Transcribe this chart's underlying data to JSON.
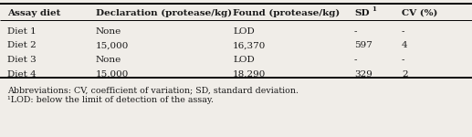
{
  "col_headers": [
    "Assay diet",
    "Declaration (protease/kg)",
    "Found (protease/kg)¹",
    "SD",
    "CV (%)"
  ],
  "rows": [
    [
      "Diet 1",
      "None",
      "LOD",
      "-",
      "-"
    ],
    [
      "Diet 2",
      "15,000",
      "16,370",
      "597",
      "4"
    ],
    [
      "Diet 3",
      "None",
      "LOD",
      "-",
      "-"
    ],
    [
      "Diet 4",
      "15,000",
      "18,290",
      "329",
      "2"
    ]
  ],
  "footnote1": "Abbreviations: CV, coefficient of variation; SD, standard deviation.",
  "footnote2": "¹LOD: below the limit of detection of the assay.",
  "col_x_inch": [
    0.08,
    1.05,
    2.55,
    3.88,
    4.4
  ],
  "bg_color": "#f0ede8",
  "text_color": "#1a1a1a",
  "header_fontsize": 7.5,
  "body_fontsize": 7.5,
  "footnote_fontsize": 6.8,
  "fig_width": 5.17,
  "fig_height": 1.5,
  "dpi": 100
}
